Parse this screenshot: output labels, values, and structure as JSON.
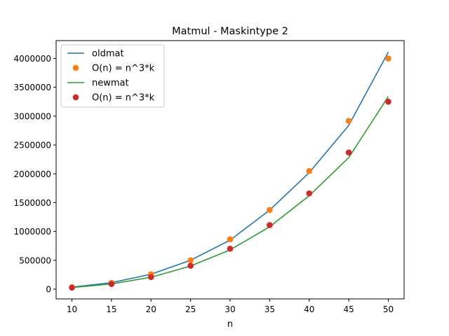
{
  "chart_data": {
    "type": "line",
    "title": "Matmul - Maskintype 2",
    "xlabel": "n",
    "ylabel": "",
    "xlim": [
      8,
      52
    ],
    "ylim": [
      -170000,
      4310000
    ],
    "x_ticks": [
      10,
      15,
      20,
      25,
      30,
      35,
      40,
      45,
      50
    ],
    "y_ticks": [
      0,
      500000,
      1000000,
      1500000,
      2000000,
      2500000,
      3000000,
      3500000,
      4000000
    ],
    "grid": false,
    "legend_position": "top-left",
    "x": [
      10,
      15,
      20,
      25,
      30,
      35,
      40,
      45,
      50
    ],
    "series": [
      {
        "name": "oldmat",
        "style": "line",
        "color": "#1f77b4",
        "values": [
          33000,
          112000,
          258000,
          500000,
          850000,
          1370000,
          2020000,
          2840000,
          4110000
        ]
      },
      {
        "name": "O(n) = n^3*k",
        "style": "marker",
        "color": "#ff7f0e",
        "values": [
          32000,
          108000,
          256000,
          500000,
          864000,
          1372000,
          2048000,
          2916000,
          4000000
        ]
      },
      {
        "name": "newmat",
        "style": "line",
        "color": "#2ca02c",
        "values": [
          27000,
          90000,
          205000,
          400000,
          680000,
          1080000,
          1620000,
          2280000,
          3340000
        ]
      },
      {
        "name": "O(n) = n^3*k",
        "style": "marker",
        "color": "#d62728",
        "values": [
          26000,
          88000,
          208000,
          405000,
          700000,
          1110000,
          1660000,
          2370000,
          3250000
        ]
      }
    ]
  }
}
